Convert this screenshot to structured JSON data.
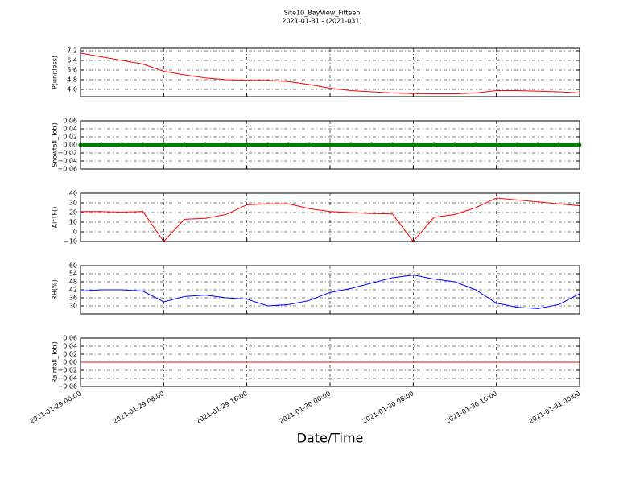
{
  "title": "Site10_BayView_Fifteen",
  "subtitle": "2021-01-31 - (2021-031)",
  "chart_data": [
    {
      "type": "line",
      "ylabel": "P(unitless)",
      "color": "#ff0000",
      "x": [
        "2021-01-29 00:00",
        "2021-01-29 02:00",
        "2021-01-29 04:00",
        "2021-01-29 06:00",
        "2021-01-29 08:00",
        "2021-01-29 10:00",
        "2021-01-29 12:00",
        "2021-01-29 14:00",
        "2021-01-29 16:00",
        "2021-01-29 18:00",
        "2021-01-29 20:00",
        "2021-01-29 22:00",
        "2021-01-30 00:00",
        "2021-01-30 02:00",
        "2021-01-30 04:00",
        "2021-01-30 06:00",
        "2021-01-30 08:00",
        "2021-01-30 10:00",
        "2021-01-30 12:00",
        "2021-01-30 14:00",
        "2021-01-30 16:00",
        "2021-01-30 18:00",
        "2021-01-30 20:00",
        "2021-01-30 22:00",
        "2021-01-31 00:00"
      ],
      "values": [
        7.0,
        6.7,
        6.4,
        6.1,
        5.5,
        5.2,
        4.95,
        4.8,
        4.75,
        4.75,
        4.65,
        4.4,
        4.1,
        3.9,
        3.8,
        3.7,
        3.65,
        3.63,
        3.63,
        3.7,
        3.9,
        3.9,
        3.85,
        3.8,
        3.7
      ],
      "ylim": [
        3.4,
        7.4
      ],
      "yticks": [
        {
          "value": 4.0,
          "label": "4.0"
        },
        4.8,
        5.6,
        6.4,
        7.2
      ],
      "grid": true
    },
    {
      "type": "scatter",
      "ylabel": "Snowfall_Tot()",
      "color": "#008000",
      "x": [
        "2021-01-29 00:00",
        "2021-01-29 02:00",
        "2021-01-29 04:00",
        "2021-01-29 06:00",
        "2021-01-29 08:00",
        "2021-01-29 10:00",
        "2021-01-29 12:00",
        "2021-01-29 14:00",
        "2021-01-29 16:00",
        "2021-01-29 18:00",
        "2021-01-29 20:00",
        "2021-01-29 22:00",
        "2021-01-30 00:00",
        "2021-01-30 02:00",
        "2021-01-30 04:00",
        "2021-01-30 06:00",
        "2021-01-30 08:00",
        "2021-01-30 10:00",
        "2021-01-30 12:00",
        "2021-01-30 14:00",
        "2021-01-30 16:00",
        "2021-01-30 18:00",
        "2021-01-30 20:00",
        "2021-01-30 22:00",
        "2021-01-31 00:00"
      ],
      "values": [
        0,
        0,
        0,
        0,
        0,
        0,
        0,
        0,
        0,
        0,
        0,
        0,
        0,
        0,
        0,
        0,
        0,
        0,
        0,
        0,
        0,
        0,
        0,
        0,
        0
      ],
      "ylim": [
        -0.06,
        0.06
      ],
      "yticks": [
        {
          "value": -0.06,
          "label": "−0.06"
        },
        {
          "value": -0.04,
          "label": "−0.04"
        },
        {
          "value": -0.02,
          "label": "−0.02"
        },
        {
          "value": 0,
          "label": "0.00"
        },
        {
          "value": 0.02,
          "label": "0.02"
        },
        {
          "value": 0.04,
          "label": "0.04"
        },
        {
          "value": 0.06,
          "label": "0.06"
        }
      ],
      "grid": true
    },
    {
      "type": "line",
      "ylabel": "AirTF()",
      "color": "#ff0000",
      "x": [
        "2021-01-29 00:00",
        "2021-01-29 02:00",
        "2021-01-29 04:00",
        "2021-01-29 06:00",
        "2021-01-29 08:00",
        "2021-01-29 10:00",
        "2021-01-29 12:00",
        "2021-01-29 14:00",
        "2021-01-29 16:00",
        "2021-01-29 18:00",
        "2021-01-29 20:00",
        "2021-01-29 22:00",
        "2021-01-30 00:00",
        "2021-01-30 02:00",
        "2021-01-30 04:00",
        "2021-01-30 06:00",
        "2021-01-30 08:00",
        "2021-01-30 10:00",
        "2021-01-30 12:00",
        "2021-01-30 14:00",
        "2021-01-30 16:00",
        "2021-01-30 18:00",
        "2021-01-30 20:00",
        "2021-01-30 22:00",
        "2021-01-31 00:00"
      ],
      "values": [
        21,
        21,
        20.5,
        21,
        -10,
        13,
        14,
        18,
        28,
        29,
        29,
        24,
        21,
        20,
        19,
        18.5,
        -10,
        15,
        18,
        25,
        35,
        33,
        31,
        29,
        27
      ],
      "ylim": [
        -10,
        40
      ],
      "yticks": [
        {
          "value": -10,
          "label": "−10"
        },
        0,
        10,
        20,
        30,
        40
      ],
      "grid": true
    },
    {
      "type": "line",
      "ylabel": "RH(%)",
      "color": "#0000ff",
      "x": [
        "2021-01-29 00:00",
        "2021-01-29 02:00",
        "2021-01-29 04:00",
        "2021-01-29 06:00",
        "2021-01-29 08:00",
        "2021-01-29 10:00",
        "2021-01-29 12:00",
        "2021-01-29 14:00",
        "2021-01-29 16:00",
        "2021-01-29 18:00",
        "2021-01-29 20:00",
        "2021-01-29 22:00",
        "2021-01-30 00:00",
        "2021-01-30 02:00",
        "2021-01-30 04:00",
        "2021-01-30 06:00",
        "2021-01-30 08:00",
        "2021-01-30 10:00",
        "2021-01-30 12:00",
        "2021-01-30 14:00",
        "2021-01-30 16:00",
        "2021-01-30 18:00",
        "2021-01-30 20:00",
        "2021-01-30 22:00",
        "2021-01-31 00:00"
      ],
      "values": [
        41,
        42,
        42,
        41,
        33,
        37,
        38,
        36,
        35,
        30,
        31,
        34,
        40,
        43,
        47,
        51,
        53,
        50,
        48,
        42,
        32,
        29,
        28,
        31,
        39
      ],
      "ylim": [
        24,
        60
      ],
      "yticks": [
        30,
        36,
        42,
        48,
        54,
        60
      ],
      "grid": true
    },
    {
      "type": "line",
      "ylabel": "Rainfall_Tot()",
      "color": "#ff0000",
      "xlabel": "Date/Time",
      "x": [
        "2021-01-29 00:00",
        "2021-01-29 02:00",
        "2021-01-29 04:00",
        "2021-01-29 06:00",
        "2021-01-29 08:00",
        "2021-01-29 10:00",
        "2021-01-29 12:00",
        "2021-01-29 14:00",
        "2021-01-29 16:00",
        "2021-01-29 18:00",
        "2021-01-29 20:00",
        "2021-01-29 22:00",
        "2021-01-30 00:00",
        "2021-01-30 02:00",
        "2021-01-30 04:00",
        "2021-01-30 06:00",
        "2021-01-30 08:00",
        "2021-01-30 10:00",
        "2021-01-30 12:00",
        "2021-01-30 14:00",
        "2021-01-30 16:00",
        "2021-01-30 18:00",
        "2021-01-30 20:00",
        "2021-01-30 22:00",
        "2021-01-31 00:00"
      ],
      "values": [
        0,
        0,
        0,
        0,
        0,
        0,
        0,
        0,
        0,
        0,
        0,
        0,
        0,
        0,
        0,
        0,
        0,
        0,
        0,
        0,
        0,
        0,
        0,
        0,
        0
      ],
      "ylim": [
        -0.06,
        0.06
      ],
      "yticks": [
        {
          "value": -0.06,
          "label": "−0.06"
        },
        {
          "value": -0.04,
          "label": "−0.04"
        },
        {
          "value": -0.02,
          "label": "−0.02"
        },
        {
          "value": 0,
          "label": "0.00"
        },
        {
          "value": 0.02,
          "label": "0.02"
        },
        {
          "value": 0.04,
          "label": "0.04"
        },
        {
          "value": 0.06,
          "label": "0.06"
        }
      ],
      "grid": true,
      "xlim": [
        "2021-01-29 00:00",
        "2021-01-31 00:00"
      ],
      "xticks": [
        "2021-01-29 00:00",
        "2021-01-29 08:00",
        "2021-01-29 16:00",
        "2021-01-30 00:00",
        "2021-01-30 08:00",
        "2021-01-30 16:00",
        "2021-01-31 00:00"
      ]
    }
  ]
}
